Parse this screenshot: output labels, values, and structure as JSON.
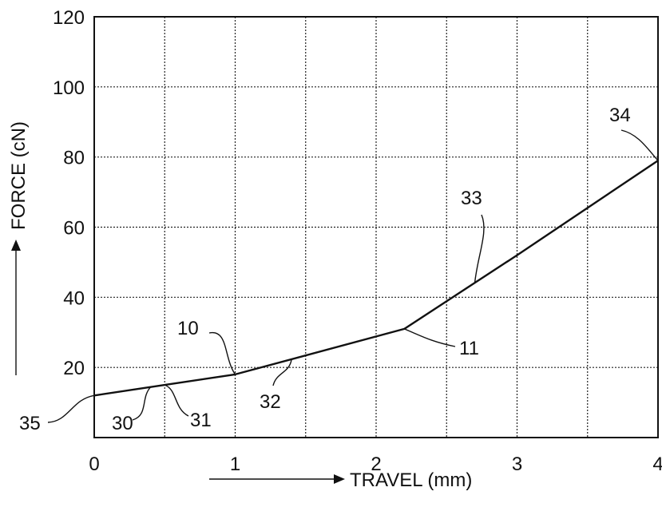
{
  "chart_data": {
    "type": "line",
    "title": "",
    "xlabel": "TRAVEL (mm)",
    "ylabel": "FORCE (cN)",
    "xlim": [
      0,
      4
    ],
    "ylim": [
      0,
      120
    ],
    "x_ticks": [
      0,
      1,
      2,
      3,
      4
    ],
    "x_tick_labels": [
      "0",
      "1",
      "2",
      "3",
      "4"
    ],
    "y_ticks": [
      20,
      40,
      60,
      80,
      100,
      120
    ],
    "y_tick_labels": [
      "20",
      "40",
      "60",
      "80",
      "100",
      "120"
    ],
    "grid": true,
    "grid_x_step": 0.5,
    "grid_y_step": 20,
    "series": [
      {
        "x": [
          0,
          0.5,
          1.0,
          2.2,
          3.0,
          4.0
        ],
        "y": [
          12,
          15,
          18,
          31,
          52,
          79
        ]
      }
    ],
    "annotations": [
      {
        "text": "35",
        "target": [
          0,
          12
        ]
      },
      {
        "text": "30",
        "target": [
          0.4,
          14.4
        ]
      },
      {
        "text": "31",
        "target": [
          0.5,
          15
        ]
      },
      {
        "text": "10",
        "target": [
          1.0,
          18
        ]
      },
      {
        "text": "32",
        "target": [
          1.4,
          22.3
        ]
      },
      {
        "text": "11",
        "target": [
          2.2,
          31
        ]
      },
      {
        "text": "33",
        "target": [
          2.7,
          44
        ]
      },
      {
        "text": "34",
        "target": [
          4.0,
          79
        ]
      }
    ]
  }
}
